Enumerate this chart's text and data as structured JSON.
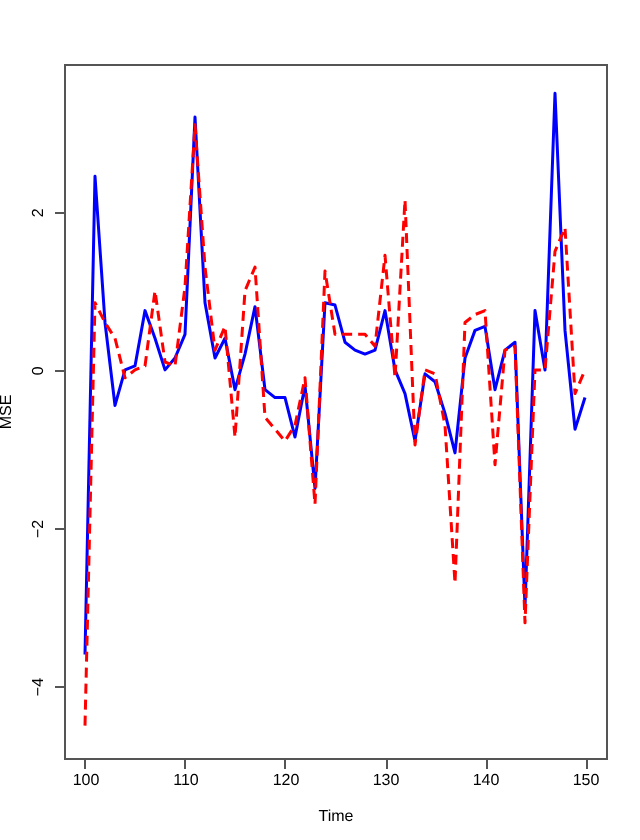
{
  "chart_data": {
    "type": "line",
    "xlabel": "Time",
    "ylabel": "MSE",
    "x": [
      100,
      101,
      102,
      103,
      104,
      105,
      106,
      107,
      108,
      109,
      110,
      111,
      112,
      113,
      114,
      115,
      116,
      117,
      118,
      119,
      120,
      121,
      122,
      123,
      124,
      125,
      126,
      127,
      128,
      129,
      130,
      131,
      132,
      133,
      134,
      135,
      136,
      137,
      138,
      139,
      140,
      141,
      142,
      143,
      144,
      145,
      146,
      147,
      148,
      149,
      150
    ],
    "series": [
      {
        "color": "#0000ff",
        "line_style": "solid",
        "values": [
          -3.6,
          2.45,
          0.6,
          -0.45,
          0.0,
          0.05,
          0.75,
          0.4,
          0.0,
          0.15,
          0.45,
          3.2,
          0.85,
          0.15,
          0.4,
          -0.25,
          0.2,
          0.8,
          -0.25,
          -0.35,
          -0.35,
          -0.85,
          -0.2,
          -1.5,
          0.85,
          0.82,
          0.35,
          0.25,
          0.2,
          0.25,
          0.75,
          0.0,
          -0.3,
          -0.9,
          -0.05,
          -0.15,
          -0.55,
          -1.05,
          0.15,
          0.5,
          0.55,
          -0.25,
          0.25,
          0.35,
          -3.0,
          0.75,
          0.0,
          3.5,
          0.5,
          -0.75,
          -0.35
        ]
      },
      {
        "color": "#ff0000",
        "line_style": "dashed",
        "values": [
          -4.5,
          0.85,
          0.6,
          0.4,
          -0.1,
          0.0,
          0.05,
          1.0,
          0.1,
          0.05,
          1.05,
          3.1,
          1.3,
          0.25,
          0.55,
          -0.85,
          1.0,
          1.3,
          -0.6,
          -0.75,
          -0.9,
          -0.7,
          -0.1,
          -1.7,
          1.25,
          0.45,
          0.45,
          0.45,
          0.45,
          0.3,
          1.45,
          -0.1,
          2.15,
          -0.95,
          0.0,
          -0.05,
          -0.7,
          -2.7,
          0.6,
          0.7,
          0.75,
          -1.2,
          0.25,
          0.3,
          -3.2,
          0.0,
          0.0,
          1.5,
          1.8,
          -0.3,
          0.0
        ]
      }
    ],
    "xlim": [
      97.9,
      152.1
    ],
    "ylim": [
      -4.91,
      3.87
    ],
    "xticks": [
      100,
      110,
      120,
      130,
      140,
      150
    ],
    "yticks": [
      -4,
      -2,
      0,
      2
    ],
    "grid": false
  }
}
